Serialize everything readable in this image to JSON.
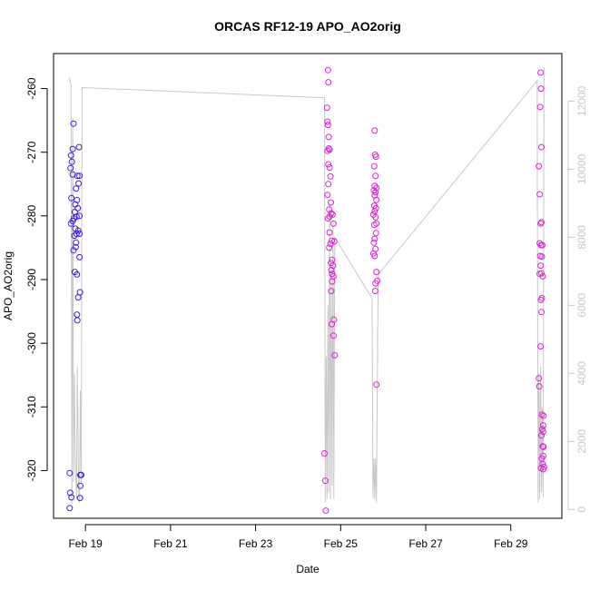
{
  "chart_data": {
    "type": "scatter",
    "title": "ORCAS RF12-19 APO_AO2orig",
    "xlabel": "Date",
    "ylabel": "APO_AO2orig",
    "x_ticks": [
      "Feb 19",
      "Feb 21",
      "Feb 23",
      "Feb 25",
      "Feb 27",
      "Feb 29"
    ],
    "x_tick_values": [
      19,
      21,
      23,
      25,
      27,
      29
    ],
    "xlim": [
      18.25,
      30.2
    ],
    "y_ticks": [
      -260,
      -270,
      -280,
      -290,
      -300,
      -310,
      -320
    ],
    "ylim": [
      -327.5,
      -254.5
    ],
    "y2_ticks": [
      0,
      2000,
      4000,
      6000,
      8000,
      10000,
      12000
    ],
    "y2lim": [
      -260,
      13400
    ],
    "colors": {
      "early_points": "#3a1ee0",
      "late_points": "#e020d8",
      "altitude_line": "#c8c8c8",
      "axes": "#000000",
      "secondary_axis": "#c8c8c8"
    },
    "series": [
      {
        "marker": "circle",
        "color": "#3a1ee0",
        "points": [
          [
            18.72,
            -265.5
          ],
          [
            18.7,
            -269.5
          ],
          [
            18.66,
            -270.5
          ],
          [
            18.68,
            -271.5
          ],
          [
            18.65,
            -272.5
          ],
          [
            18.7,
            -273.5
          ],
          [
            18.85,
            -269.2
          ],
          [
            18.81,
            -273.7
          ],
          [
            18.86,
            -273.7
          ],
          [
            18.84,
            -274.9
          ],
          [
            18.78,
            -275.7
          ],
          [
            18.67,
            -277.2
          ],
          [
            18.8,
            -277.5
          ],
          [
            18.76,
            -278.2
          ],
          [
            18.82,
            -278.8
          ],
          [
            18.75,
            -279.4
          ],
          [
            18.86,
            -280.0
          ],
          [
            18.79,
            -280.1
          ],
          [
            18.73,
            -280.4
          ],
          [
            18.7,
            -280.8
          ],
          [
            18.66,
            -281.2
          ],
          [
            18.76,
            -282.0
          ],
          [
            18.83,
            -282.3
          ],
          [
            18.79,
            -282.8
          ],
          [
            18.86,
            -282.8
          ],
          [
            18.74,
            -283.1
          ],
          [
            18.78,
            -284.2
          ],
          [
            18.77,
            -284.9
          ],
          [
            18.72,
            -285.4
          ],
          [
            18.86,
            -286.5
          ],
          [
            18.75,
            -288.8
          ],
          [
            18.8,
            -289.2
          ],
          [
            18.87,
            -292.0
          ],
          [
            18.83,
            -292.8
          ],
          [
            18.8,
            -295.5
          ],
          [
            18.81,
            -296.4
          ],
          [
            18.63,
            -320.4
          ],
          [
            18.88,
            -320.7
          ],
          [
            18.9,
            -320.7
          ],
          [
            18.88,
            -322.4
          ],
          [
            18.64,
            -323.5
          ],
          [
            18.67,
            -324.2
          ],
          [
            18.87,
            -324.3
          ],
          [
            18.63,
            -325.9
          ]
        ]
      },
      {
        "marker": "circle",
        "color": "#e020d8",
        "points": [
          [
            24.7,
            -257.1
          ],
          [
            24.71,
            -259.0
          ],
          [
            24.68,
            -263.0
          ],
          [
            24.69,
            -265.2
          ],
          [
            24.7,
            -265.7
          ],
          [
            24.72,
            -267.6
          ],
          [
            24.72,
            -269.4
          ],
          [
            24.74,
            -269.6
          ],
          [
            24.69,
            -269.8
          ],
          [
            24.71,
            -271.9
          ],
          [
            24.74,
            -272.4
          ],
          [
            24.76,
            -273.8
          ],
          [
            24.71,
            -275.0
          ],
          [
            24.69,
            -276.7
          ],
          [
            24.77,
            -277.9
          ],
          [
            24.73,
            -279.0
          ],
          [
            24.78,
            -279.6
          ],
          [
            24.81,
            -279.8
          ],
          [
            24.74,
            -280.1
          ],
          [
            24.7,
            -280.4
          ],
          [
            24.83,
            -281.2
          ],
          [
            24.74,
            -282.6
          ],
          [
            24.79,
            -283.9
          ],
          [
            24.85,
            -284.0
          ],
          [
            24.76,
            -284.4
          ],
          [
            24.73,
            -285.0
          ],
          [
            24.8,
            -286.9
          ],
          [
            24.77,
            -287.4
          ],
          [
            24.82,
            -287.8
          ],
          [
            24.78,
            -288.5
          ],
          [
            24.8,
            -289.1
          ],
          [
            24.83,
            -289.5
          ],
          [
            24.8,
            -290.3
          ],
          [
            24.78,
            -291.8
          ],
          [
            24.84,
            -296.3
          ],
          [
            24.79,
            -297.0
          ],
          [
            24.83,
            -298.8
          ],
          [
            24.86,
            -301.9
          ],
          [
            24.62,
            -317.3
          ],
          [
            24.64,
            -321.6
          ],
          [
            24.65,
            -326.3
          ],
          [
            25.8,
            -266.6
          ],
          [
            25.81,
            -270.4
          ],
          [
            25.83,
            -270.7
          ],
          [
            25.79,
            -272.2
          ],
          [
            25.82,
            -273.7
          ],
          [
            25.8,
            -275.3
          ],
          [
            25.84,
            -275.6
          ],
          [
            25.78,
            -276.0
          ],
          [
            25.82,
            -276.3
          ],
          [
            25.8,
            -276.8
          ],
          [
            25.84,
            -277.5
          ],
          [
            25.79,
            -278.4
          ],
          [
            25.83,
            -278.8
          ],
          [
            25.8,
            -279.3
          ],
          [
            25.77,
            -279.8
          ],
          [
            25.82,
            -280.2
          ],
          [
            25.84,
            -281.2
          ],
          [
            25.79,
            -281.4
          ],
          [
            25.83,
            -282.7
          ],
          [
            25.8,
            -283.6
          ],
          [
            25.78,
            -284.2
          ],
          [
            25.82,
            -285.2
          ],
          [
            25.77,
            -285.9
          ],
          [
            25.8,
            -286.3
          ],
          [
            25.84,
            -288.8
          ],
          [
            25.86,
            -290.2
          ],
          [
            25.82,
            -290.6
          ],
          [
            25.81,
            -291.8
          ],
          [
            25.84,
            -306.5
          ],
          [
            29.7,
            -257.5
          ],
          [
            29.71,
            -260.0
          ],
          [
            29.69,
            -262.9
          ],
          [
            29.72,
            -269.2
          ],
          [
            29.66,
            -272.2
          ],
          [
            29.68,
            -276.6
          ],
          [
            29.72,
            -281.0
          ],
          [
            29.7,
            -281.2
          ],
          [
            29.68,
            -284.3
          ],
          [
            29.71,
            -284.6
          ],
          [
            29.74,
            -284.6
          ],
          [
            29.69,
            -286.3
          ],
          [
            29.73,
            -286.4
          ],
          [
            29.7,
            -287.8
          ],
          [
            29.72,
            -289.0
          ],
          [
            29.68,
            -289.1
          ],
          [
            29.75,
            -289.5
          ],
          [
            29.73,
            -292.9
          ],
          [
            29.71,
            -293.2
          ],
          [
            29.72,
            -295.1
          ],
          [
            29.7,
            -300.5
          ],
          [
            29.66,
            -305.5
          ],
          [
            29.67,
            -306.8
          ],
          [
            29.73,
            -311.2
          ],
          [
            29.77,
            -311.4
          ],
          [
            29.76,
            -312.9
          ],
          [
            29.74,
            -313.5
          ],
          [
            29.76,
            -313.9
          ],
          [
            29.72,
            -314.5
          ],
          [
            29.75,
            -316.2
          ],
          [
            29.77,
            -316.3
          ],
          [
            29.76,
            -317.7
          ],
          [
            29.73,
            -318.1
          ],
          [
            29.75,
            -319.0
          ],
          [
            29.78,
            -319.4
          ],
          [
            29.71,
            -319.6
          ],
          [
            29.76,
            -319.8
          ]
        ]
      },
      {
        "marker": "line",
        "axis": "right",
        "color": "#c8c8c8",
        "points": [
          [
            18.62,
            12700
          ],
          [
            18.66,
            12500
          ],
          [
            18.68,
            200
          ],
          [
            18.7,
            11500
          ],
          [
            18.72,
            800
          ],
          [
            18.74,
            4000
          ],
          [
            18.76,
            1500
          ],
          [
            18.79,
            300
          ],
          [
            18.81,
            4200
          ],
          [
            18.84,
            600
          ],
          [
            18.86,
            200
          ],
          [
            18.88,
            3500
          ],
          [
            18.9,
            800
          ],
          [
            18.92,
            12400
          ],
          [
            24.62,
            12100
          ],
          [
            24.64,
            200
          ],
          [
            24.66,
            4500
          ],
          [
            24.68,
            300
          ],
          [
            24.7,
            6000
          ],
          [
            24.72,
            500
          ],
          [
            24.74,
            9000
          ],
          [
            24.76,
            300
          ],
          [
            24.78,
            7000
          ],
          [
            24.8,
            700
          ],
          [
            24.82,
            8500
          ],
          [
            24.84,
            300
          ],
          [
            24.86,
            8000
          ],
          [
            25.74,
            6200
          ],
          [
            25.76,
            350
          ],
          [
            25.78,
            1500
          ],
          [
            25.8,
            300
          ],
          [
            25.82,
            1500
          ],
          [
            25.84,
            200
          ],
          [
            25.88,
            6900
          ],
          [
            29.62,
            12600
          ],
          [
            29.64,
            200
          ],
          [
            29.66,
            4000
          ],
          [
            29.68,
            300
          ],
          [
            29.7,
            4200
          ],
          [
            29.72,
            500
          ],
          [
            29.74,
            3000
          ],
          [
            29.76,
            350
          ],
          [
            29.78,
            13000
          ]
        ]
      }
    ]
  }
}
